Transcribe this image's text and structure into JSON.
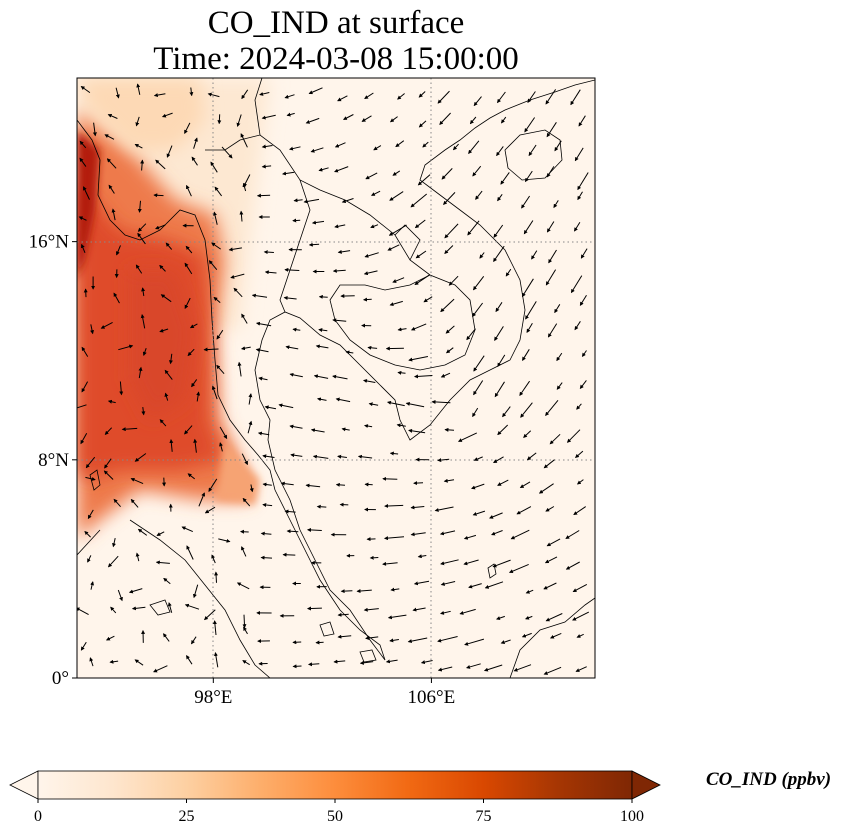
{
  "title": {
    "line1": "CO_IND at surface",
    "line2": "Time: 2024-03-08 15:00:00"
  },
  "map": {
    "extent": {
      "lon_min": 93,
      "lon_max": 112,
      "lat_min": 0,
      "lat_max": 22
    },
    "lat_ticks": [
      {
        "value": 0,
        "label": "0°"
      },
      {
        "value": 8,
        "label": "8°N"
      },
      {
        "value": 16,
        "label": "16°N"
      }
    ],
    "lon_ticks": [
      {
        "value": 98,
        "label": "98°E"
      },
      {
        "value": 106,
        "label": "106°E"
      }
    ],
    "gridlines": "dotted gray at ticks",
    "field_description": "high CO_IND concentration over western region (Bay of Bengal / Myanmar coast), low elsewhere",
    "wind_vectors": true
  },
  "colorbar": {
    "label": "CO_IND (ppbv)",
    "min": 0,
    "max": 100,
    "extend": "both",
    "ticks": [
      "0",
      "25",
      "50",
      "75",
      "100"
    ],
    "colormap": [
      "#fff5eb",
      "#fee6ce",
      "#fdd0a2",
      "#fdae6b",
      "#fd8d3c",
      "#f16913",
      "#d94801",
      "#a63603",
      "#7f2704"
    ]
  }
}
